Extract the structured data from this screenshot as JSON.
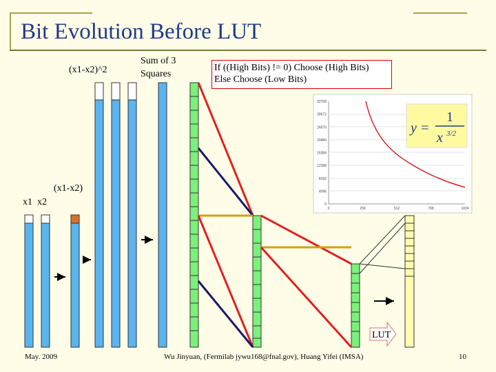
{
  "slide": {
    "title": "Bit Evolution Before LUT",
    "label_square": "(x1-x2)^2",
    "label_sum_line1": "Sum of 3",
    "label_sum_line2": "Squares",
    "label_diff": "(x1-x2)",
    "label_x1x2": "x1  x2",
    "rule_line1": "If ((High Bits) != 0) Choose (High Bits)",
    "rule_line2": "Else Choose (Low Bits)",
    "lut_label": "LUT",
    "footer_date": "May. 2009",
    "footer_author": "Wu Jinyuan, (Fermilab jywu168@fnal.gov), Huang Yifei (IMSA)",
    "footer_page": "10"
  },
  "inset_chart": {
    "formula_lhs": "y =",
    "formula_num": "1",
    "formula_den": "x",
    "formula_exp": "3/2",
    "y_ticks": [
      "32768",
      "28672",
      "24576",
      "20480",
      "16384",
      "12288",
      "8192",
      "4096",
      "0"
    ],
    "x_ticks": [
      "0",
      "256",
      "512",
      "768",
      "1024"
    ],
    "curve_color": "#d62020"
  },
  "colors": {
    "title": "#1f3a8a",
    "blue_fill": "#5ab4ee",
    "green_fill": "#7bf07b",
    "yellow_fill": "#fffdb0",
    "orange_bit": "#d9702a",
    "red_line": "#e02020",
    "navy_line": "#1a1a6a",
    "gold_line": "#d4a010"
  }
}
